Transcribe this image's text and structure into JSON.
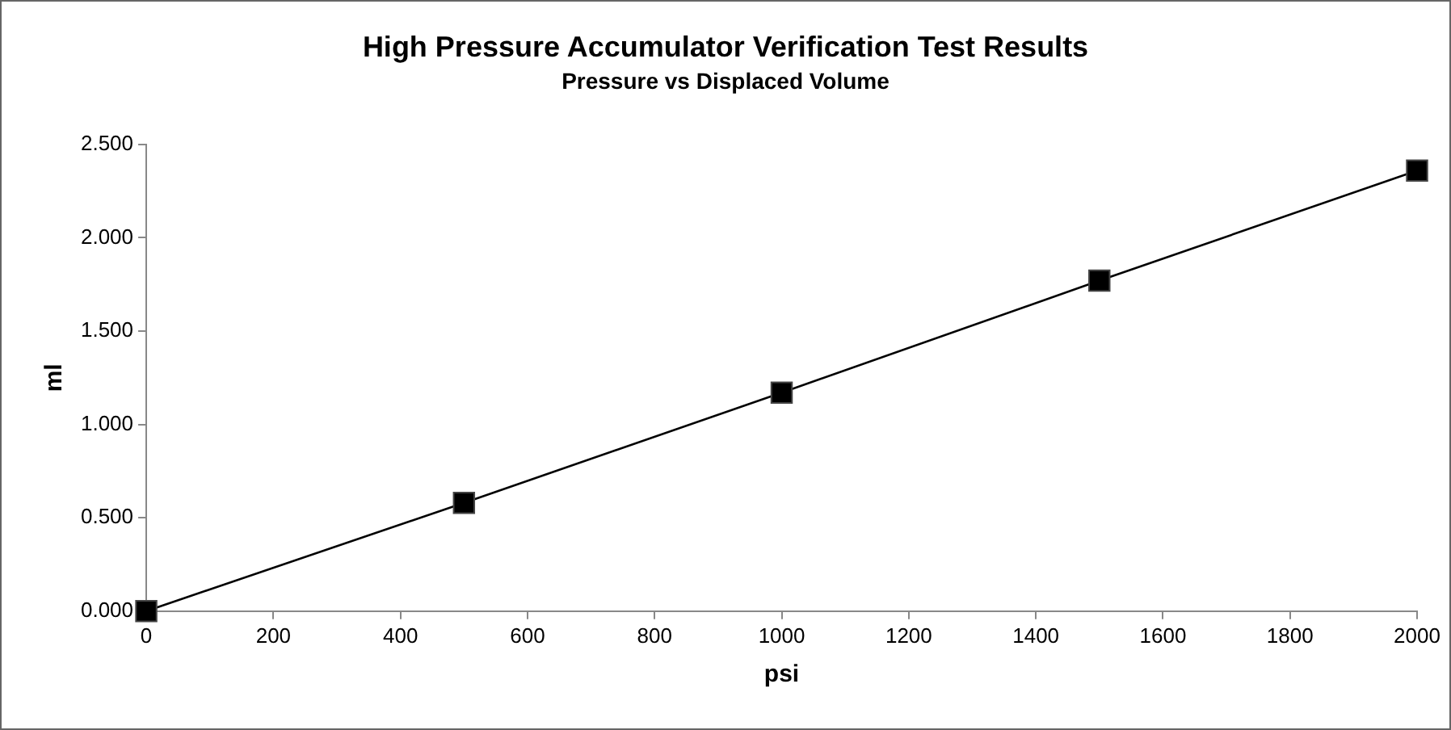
{
  "chart_data": {
    "type": "line",
    "title": "High Pressure Accumulator Verification Test Results",
    "subtitle": "Pressure vs Displaced Volume",
    "xlabel": "psi",
    "ylabel": "ml",
    "x": [
      0,
      500,
      1000,
      1500,
      2000
    ],
    "series": [
      {
        "color": "#000000",
        "values": [
          0,
          0.58,
          1.17,
          1.77,
          2.36
        ]
      }
    ],
    "xlim": [
      0,
      2000
    ],
    "xticks": [
      0,
      200,
      400,
      600,
      800,
      1000,
      1200,
      1400,
      1600,
      1800,
      2000
    ],
    "ylim": [
      0,
      2.5
    ],
    "yticks": [
      {
        "value": 0,
        "label": "0.000"
      },
      {
        "value": 0.5,
        "label": "0.500"
      },
      {
        "value": 1,
        "label": "1.000"
      },
      {
        "value": 1.5,
        "label": "1.500"
      },
      {
        "value": 2,
        "label": "2.000"
      },
      {
        "value": 2.5,
        "label": "2.500"
      }
    ],
    "grid": false,
    "legend": false,
    "marker": "square",
    "line_style": "solid"
  }
}
